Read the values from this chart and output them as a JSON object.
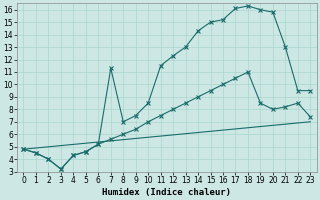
{
  "xlabel": "Humidex (Indice chaleur)",
  "xlim": [
    -0.5,
    23.5
  ],
  "ylim": [
    3.0,
    16.5
  ],
  "xticks": [
    0,
    1,
    2,
    3,
    4,
    5,
    6,
    7,
    8,
    9,
    10,
    11,
    12,
    13,
    14,
    15,
    16,
    17,
    18,
    19,
    20,
    21,
    22,
    23
  ],
  "yticks": [
    3,
    4,
    5,
    6,
    7,
    8,
    9,
    10,
    11,
    12,
    13,
    14,
    15,
    16
  ],
  "bg_color": "#cde8e4",
  "line_color": "#1a6b6b",
  "grid_color": "#aad4ce",
  "c1x": [
    0,
    1,
    2,
    3,
    4,
    5,
    6,
    7,
    8,
    9,
    10,
    11,
    12,
    13,
    14,
    15,
    16,
    17,
    18,
    19,
    20,
    21,
    22,
    23
  ],
  "c1y": [
    4.8,
    4.5,
    4.0,
    3.2,
    4.3,
    4.6,
    5.2,
    5.6,
    6.0,
    6.4,
    7.0,
    7.5,
    8.0,
    8.5,
    9.0,
    9.5,
    10.0,
    10.5,
    11.0,
    8.5,
    8.0,
    8.2,
    8.5,
    7.4
  ],
  "c2x": [
    0,
    1,
    2,
    3,
    4,
    5,
    6,
    7,
    8,
    9,
    10,
    11,
    12,
    13,
    14,
    15,
    16,
    17,
    18,
    19,
    20,
    21,
    22,
    23
  ],
  "c2y": [
    4.8,
    4.5,
    4.0,
    3.2,
    4.3,
    4.6,
    5.2,
    11.3,
    7.0,
    7.5,
    8.5,
    11.5,
    12.3,
    13.0,
    14.3,
    15.0,
    15.2,
    16.1,
    16.3,
    16.0,
    15.8,
    13.0,
    9.5,
    9.5
  ],
  "c3x": [
    0,
    23
  ],
  "c3y": [
    4.8,
    7.0
  ],
  "tick_fontsize": 5.5,
  "xlabel_fontsize": 6.5
}
